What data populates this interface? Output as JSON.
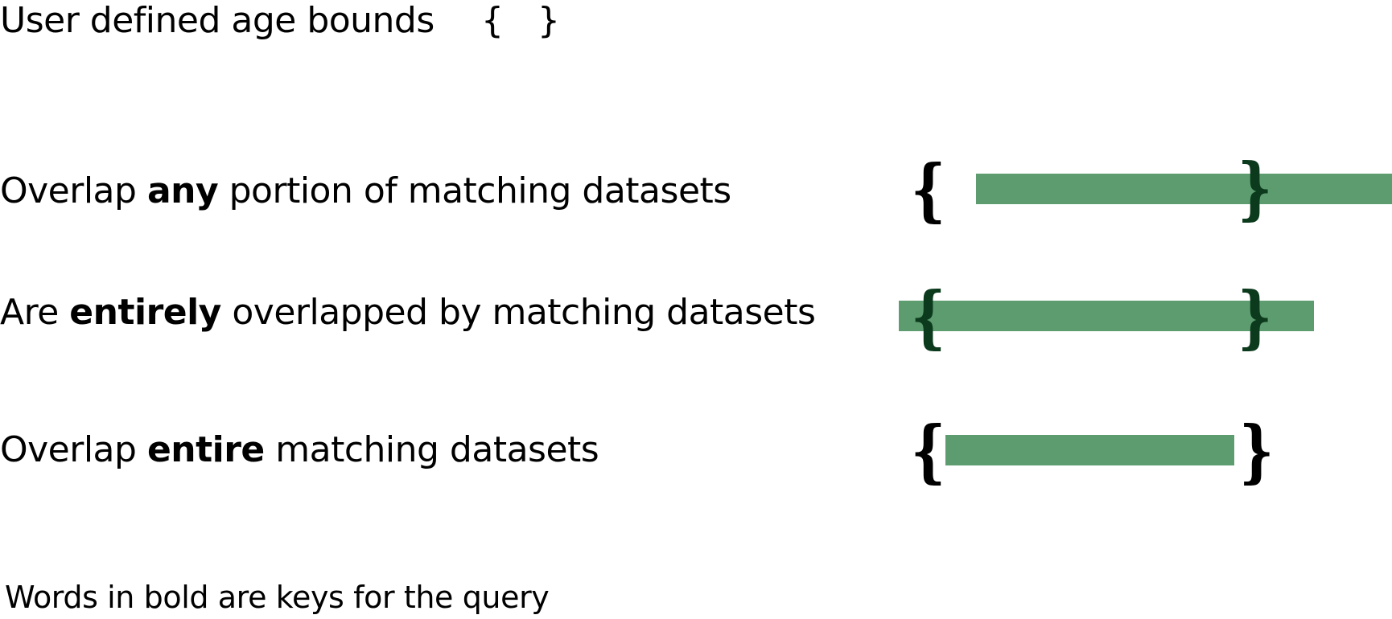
{
  "colors": {
    "bar": "#5c9c6f",
    "brace": "#000000",
    "brace_over_bar": "#0c3a1c"
  },
  "legend": {
    "title": "User defined age bounds",
    "braces": "{ }"
  },
  "rows": [
    {
      "id": "any",
      "prefix": "Overlap ",
      "key": "any",
      "suffix": " portion of matching datasets"
    },
    {
      "id": "entirely",
      "prefix": "Are ",
      "key": "entirely",
      "suffix": " overlapped by matching datasets"
    },
    {
      "id": "entire",
      "prefix": "Overlap ",
      "key": "entire",
      "suffix": " matching datasets"
    }
  ],
  "brace_glyphs": {
    "open": "{",
    "close": "}"
  },
  "footnote": "Words in bold are keys for the query"
}
